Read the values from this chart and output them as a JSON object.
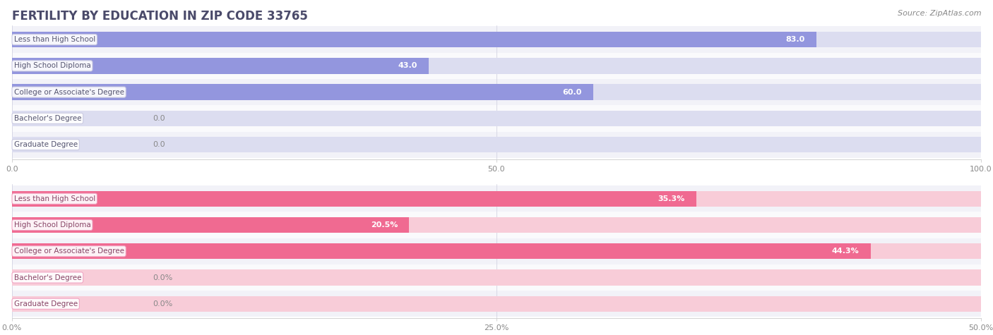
{
  "title": "FERTILITY BY EDUCATION IN ZIP CODE 33765",
  "source": "Source: ZipAtlas.com",
  "top_chart": {
    "categories": [
      "Less than High School",
      "High School Diploma",
      "College or Associate's Degree",
      "Bachelor's Degree",
      "Graduate Degree"
    ],
    "values": [
      83.0,
      43.0,
      60.0,
      0.0,
      0.0
    ],
    "labels": [
      "83.0",
      "43.0",
      "60.0",
      "0.0",
      "0.0"
    ],
    "bar_color": "#8b8fdc",
    "bar_bg_color": "#dcddf0",
    "xlim": [
      0,
      100
    ],
    "xticks": [
      0.0,
      50.0,
      100.0
    ],
    "xtick_labels": [
      "0.0",
      "50.0",
      "100.0"
    ]
  },
  "bottom_chart": {
    "categories": [
      "Less than High School",
      "High School Diploma",
      "College or Associate's Degree",
      "Bachelor's Degree",
      "Graduate Degree"
    ],
    "values": [
      35.3,
      20.5,
      44.3,
      0.0,
      0.0
    ],
    "labels": [
      "35.3%",
      "20.5%",
      "44.3%",
      "0.0%",
      "0.0%"
    ],
    "bar_color": "#f0608a",
    "bar_bg_color": "#f8ccd8",
    "xlim": [
      0,
      50
    ],
    "xticks": [
      0.0,
      25.0,
      50.0
    ],
    "xtick_labels": [
      "0.0%",
      "25.0%",
      "50.0%"
    ]
  },
  "title_color": "#4a4a6a",
  "source_color": "#888888",
  "title_fontsize": 12,
  "tick_fontsize": 8,
  "category_fontsize": 7.5,
  "value_fontsize": 8,
  "bar_height": 0.6,
  "row_bg_even": "#f2f2f8",
  "row_bg_odd": "#fafafc",
  "label_box_top_fc": "#ffffff",
  "label_box_top_ec": "#c8c8e0",
  "label_box_bot_fc": "#ffffff",
  "label_box_bot_ec": "#f0a0c0"
}
